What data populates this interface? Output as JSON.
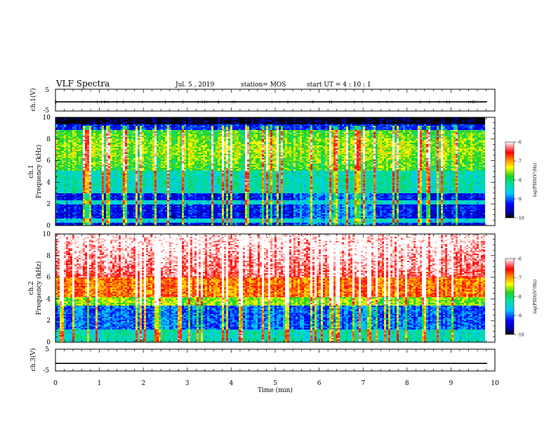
{
  "header": {
    "title": "VLF Spectra",
    "date": "Jul. 5 , 2019",
    "station": "station= MOS",
    "start": "start UT = 4 : 10 : 1"
  },
  "chart_data": [
    {
      "type": "line",
      "panel": "waveform-ch1",
      "ylabel": "ch.1(V)",
      "ylim": [
        -5,
        5
      ],
      "yticks": [
        "5",
        "-5"
      ],
      "series": [
        {
          "x": [
            0,
            9.82
          ],
          "values": [
            -0.8,
            -0.8
          ]
        }
      ]
    },
    {
      "type": "heatmap",
      "panel": "spectrogram-ch1",
      "ylabel": "ch.1",
      "ylabel2": "Frequency (kHz)",
      "ylim": [
        0,
        10
      ],
      "yticks": [
        "0",
        "2",
        "4",
        "6",
        "8",
        "10"
      ],
      "xlim": [
        0,
        10
      ],
      "data_end_min": 9.82,
      "colorbar": {
        "label": "log(PSD)(V²/Hz)",
        "range": [
          -10,
          -6
        ],
        "ticks": [
          "-6",
          "-7",
          "-8",
          "-9",
          "-10"
        ]
      }
    },
    {
      "type": "heatmap",
      "panel": "spectrogram-ch2",
      "ylabel": "ch.2",
      "ylabel2": "Frequency (kHz)",
      "ylim": [
        0,
        10
      ],
      "yticks": [
        "0",
        "2",
        "4",
        "6",
        "8",
        "10"
      ],
      "xlim": [
        0,
        10
      ],
      "data_end_min": 9.82,
      "colorbar": {
        "label": "log(PSD)(V²/Hz)",
        "range": [
          -10,
          -6
        ],
        "ticks": [
          "-6",
          "-7",
          "-8",
          "-9",
          "-10"
        ]
      }
    },
    {
      "type": "line",
      "panel": "waveform-ch3",
      "ylabel": "ch.3(V)",
      "ylim": [
        -5,
        5
      ],
      "yticks": [
        "5",
        "-5"
      ],
      "series": [
        {
          "x": [
            0,
            9.82
          ],
          "values": [
            -1.5,
            -1.5
          ]
        }
      ]
    }
  ],
  "xaxis": {
    "label": "Time (min)",
    "range": [
      0,
      10
    ],
    "ticks": [
      "0",
      "1",
      "2",
      "3",
      "4",
      "5",
      "6",
      "7",
      "8",
      "9",
      "10"
    ]
  }
}
